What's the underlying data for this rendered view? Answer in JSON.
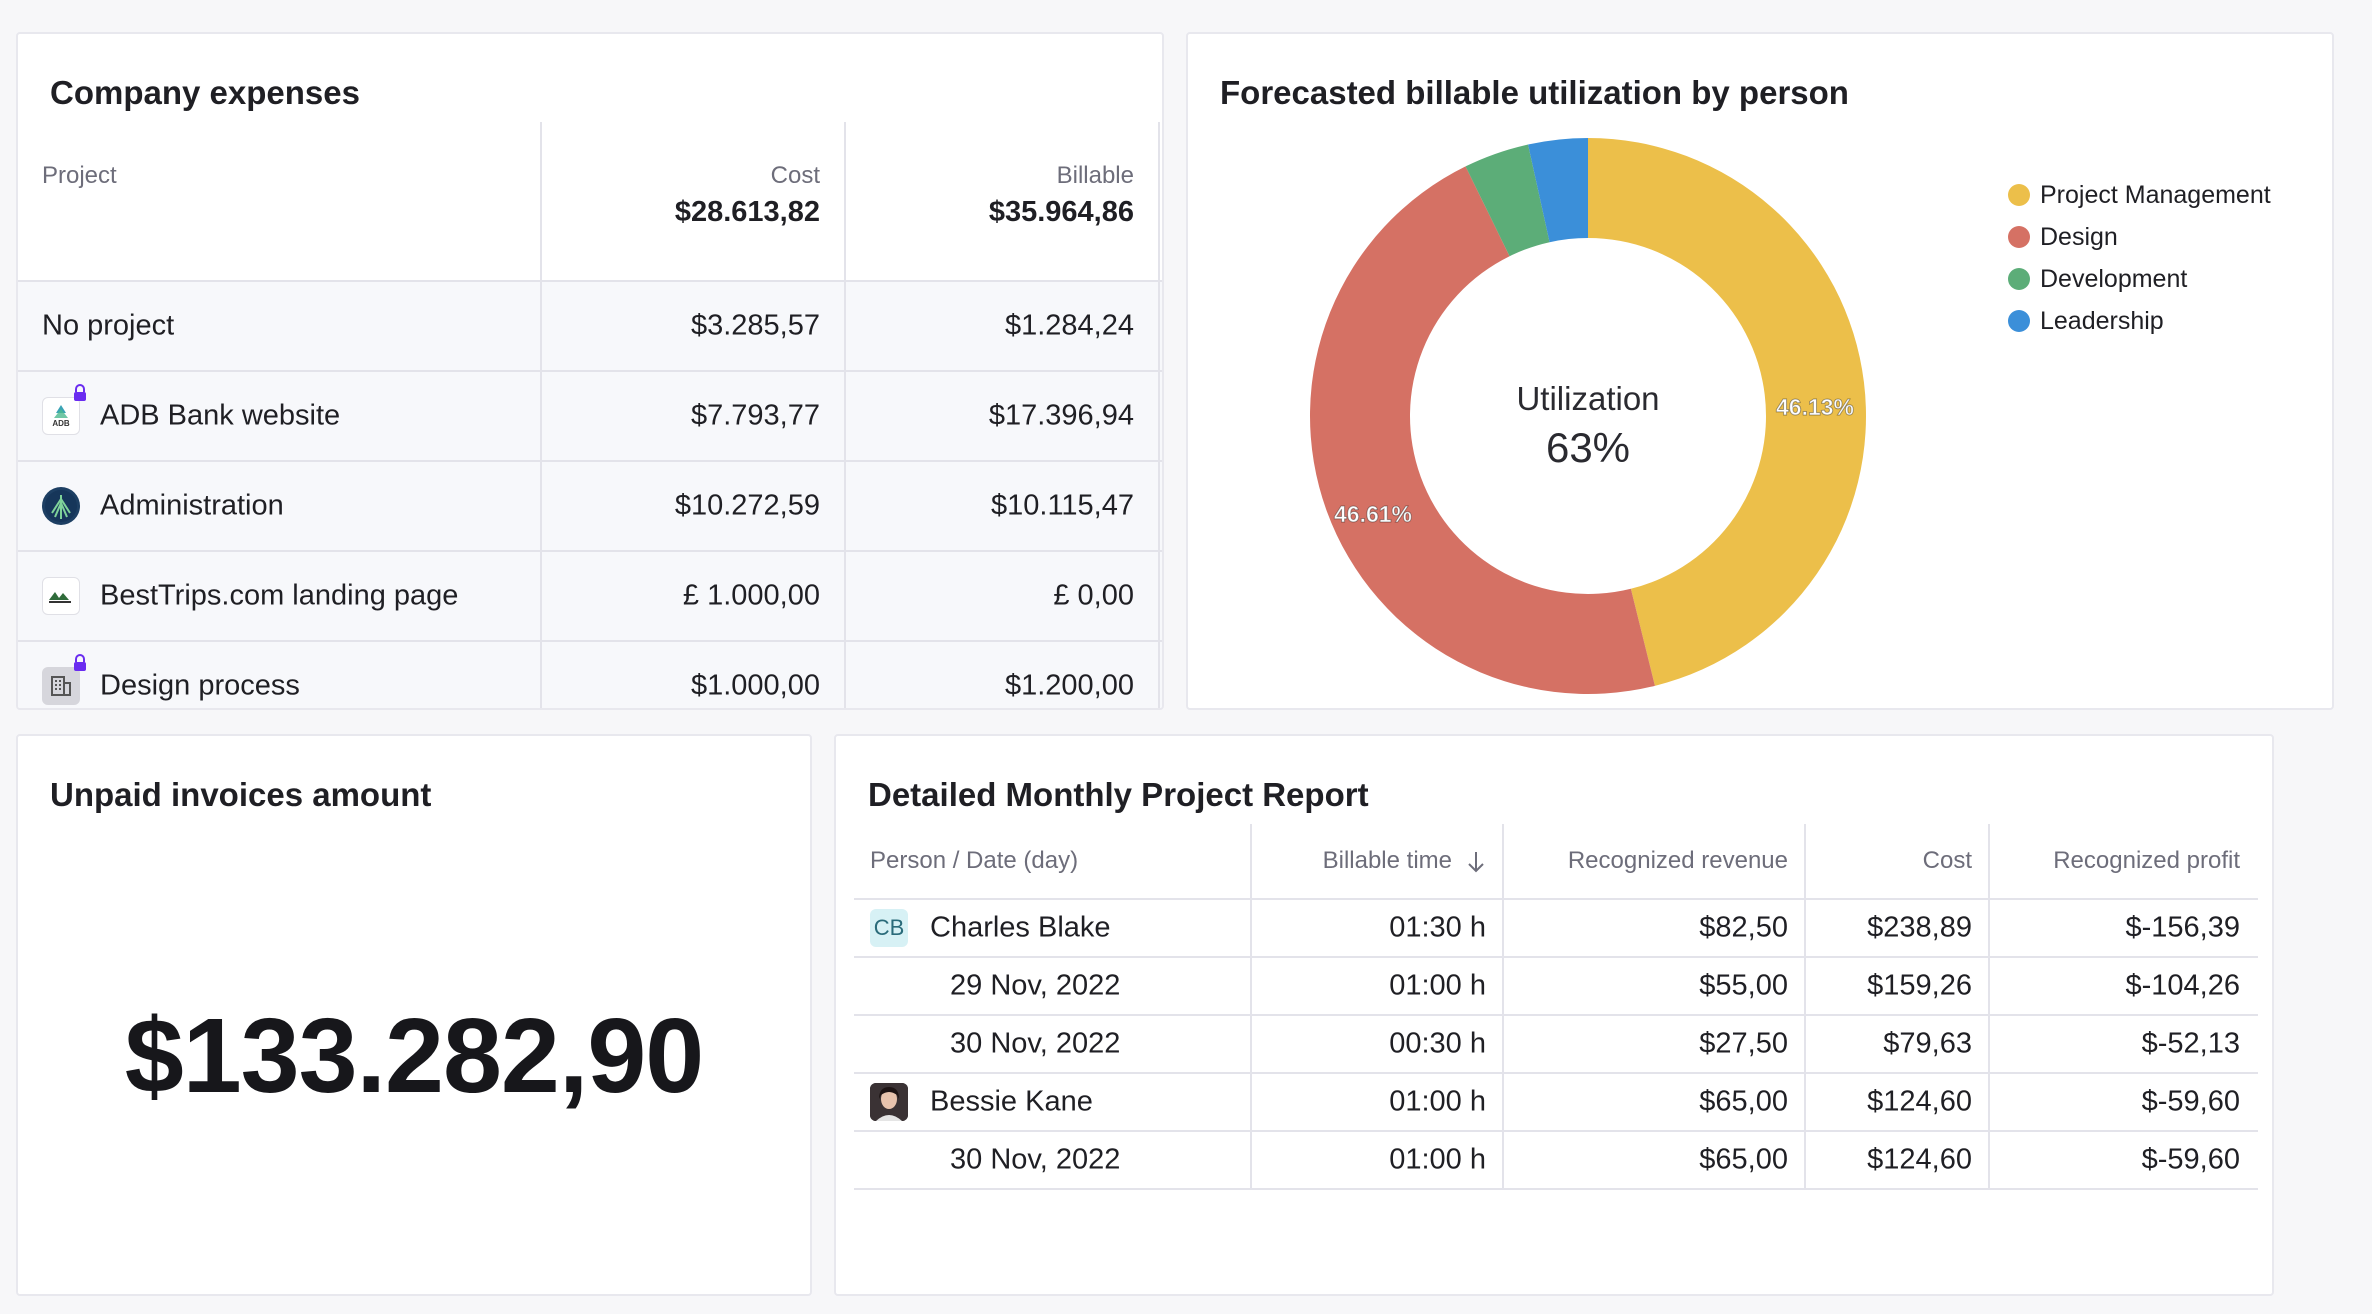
{
  "expenses": {
    "title": "Company expenses",
    "columns": {
      "project": "Project",
      "cost": "Cost",
      "cost_total": "$28.613,82",
      "billable": "Billable",
      "billable_total": "$35.964,86"
    },
    "rows": [
      {
        "name": "No project",
        "cost": "$3.285,57",
        "billable": "$1.284,24",
        "icon": "none"
      },
      {
        "name": "ADB Bank website",
        "cost": "$7.793,77",
        "billable": "$17.396,94",
        "icon": "adb-logo-icon",
        "icon_text": "ADB",
        "locked": true
      },
      {
        "name": "Administration",
        "cost": "$10.272,59",
        "billable": "$10.115,47",
        "icon": "administration-logo-icon"
      },
      {
        "name": "BestTrips.com landing page",
        "cost": "£ 1.000,00",
        "billable": "£ 0,00",
        "icon": "besttrips-logo-icon"
      },
      {
        "name": "Design process",
        "cost": "$1.000,00",
        "billable": "$1.200,00",
        "icon": "building-icon",
        "locked": true
      }
    ]
  },
  "utilization": {
    "title": "Forecasted billable utilization by person",
    "center_label": "Utilization",
    "center_value": "63%",
    "legend": [
      "Project Management",
      "Design",
      "Development",
      "Leadership"
    ]
  },
  "chart_data": {
    "type": "pie",
    "categories": [
      "Project Management",
      "Design",
      "Development",
      "Leadership"
    ],
    "values": [
      46.13,
      46.61,
      3.8,
      3.46
    ],
    "data_labels": [
      "46.13%",
      "46.61%",
      "",
      ""
    ],
    "colors": [
      "#ecbf4a",
      "#d57164",
      "#5cad78",
      "#3b8fd9"
    ],
    "donut": true,
    "center_text": "Utilization 63%",
    "legend_position": "top-right"
  },
  "unpaid": {
    "title": "Unpaid invoices amount",
    "amount": "$133.282,90"
  },
  "report": {
    "title": "Detailed Monthly Project Report",
    "columns": [
      "Person / Date (day)",
      "Billable time",
      "Recognized revenue",
      "Cost",
      "Recognized profit"
    ],
    "rows": [
      {
        "kind": "person",
        "label": "Charles Blake",
        "initials": "CB",
        "billable_time": "01:30 h",
        "revenue": "$82,50",
        "cost": "$238,89",
        "profit": "$-156,39"
      },
      {
        "kind": "date",
        "label": "29 Nov, 2022",
        "billable_time": "01:00 h",
        "revenue": "$55,00",
        "cost": "$159,26",
        "profit": "$-104,26"
      },
      {
        "kind": "date",
        "label": "30 Nov, 2022",
        "billable_time": "00:30 h",
        "revenue": "$27,50",
        "cost": "$79,63",
        "profit": "$-52,13"
      },
      {
        "kind": "person",
        "label": "Bessie Kane",
        "avatar": true,
        "billable_time": "01:00 h",
        "revenue": "$65,00",
        "cost": "$124,60",
        "profit": "$-59,60"
      },
      {
        "kind": "date",
        "label": "30 Nov, 2022",
        "billable_time": "01:00 h",
        "revenue": "$65,00",
        "cost": "$124,60",
        "profit": "$-59,60"
      }
    ]
  }
}
